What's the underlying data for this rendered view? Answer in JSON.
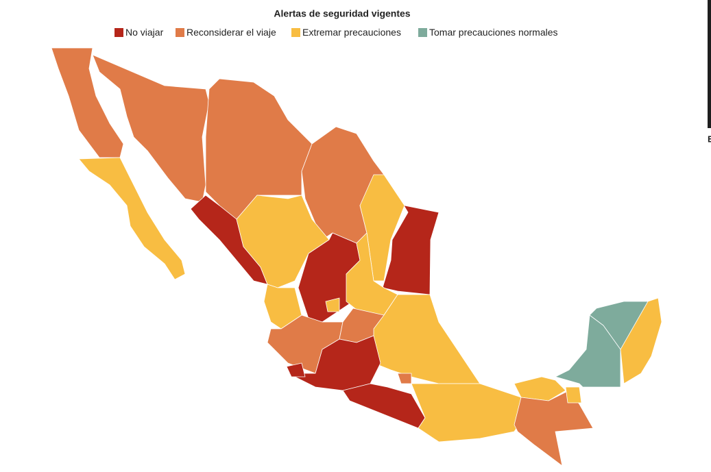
{
  "title": "Alertas de seguridad vigentes",
  "legend": [
    {
      "label": "No viajar",
      "color": "#b5261a"
    },
    {
      "label": "Reconsiderar el viaje",
      "color": "#e07b48"
    },
    {
      "label": "Extremar precauciones",
      "color": "#f8bd42"
    },
    {
      "label": "Tomar precauciones normales",
      "color": "#7eab9c"
    }
  ],
  "regions": [
    {
      "alert": "Reconsiderar el viaje"
    },
    {
      "alert": "Extremar precauciones"
    },
    {
      "alert": "Reconsiderar el viaje"
    },
    {
      "alert": "Reconsiderar el viaje"
    },
    {
      "alert": "Reconsiderar el viaje"
    },
    {
      "alert": "No viajar"
    },
    {
      "alert": "Extremar precauciones"
    },
    {
      "alert": "No viajar"
    },
    {
      "alert": "Extremar precauciones"
    },
    {
      "alert": "No viajar"
    },
    {
      "alert": "Extremar precauciones"
    },
    {
      "alert": "Extremar precauciones"
    },
    {
      "alert": "Reconsiderar el viaje"
    },
    {
      "alert": "Extremar precauciones"
    },
    {
      "alert": "Reconsiderar el viaje"
    },
    {
      "alert": "Extremar precauciones"
    },
    {
      "alert": "No viajar"
    },
    {
      "alert": "No viajar"
    },
    {
      "alert": "No viajar"
    },
    {
      "alert": "Reconsiderar el viaje"
    },
    {
      "alert": "Extremar precauciones"
    },
    {
      "alert": "Extremar precauciones"
    },
    {
      "alert": "Reconsiderar el viaje"
    },
    {
      "alert": "Tomar precauciones normales"
    },
    {
      "alert": "Tomar precauciones normales"
    },
    {
      "alert": "Extremar precauciones"
    },
    {
      "alert": "Extremar precauciones"
    }
  ],
  "edge_text": "E"
}
